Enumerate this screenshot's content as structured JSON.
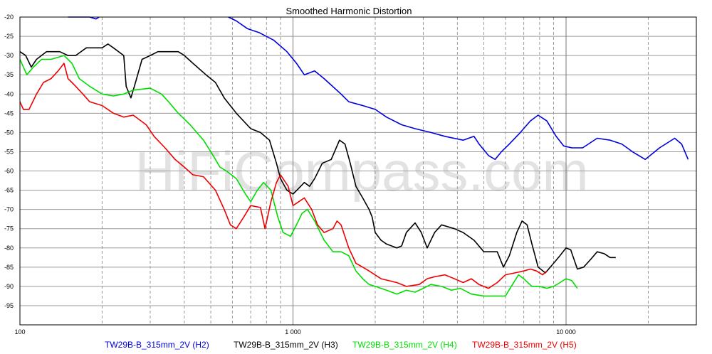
{
  "watermark": "HiFiCompass.com",
  "chart_data": {
    "type": "line",
    "title": "Smoothed Harmonic Distortion",
    "xlabel": "",
    "ylabel": "",
    "x_scale": "log",
    "xlim": [
      100,
      30000
    ],
    "ylim": [
      -100,
      -20
    ],
    "grid": true,
    "legend_position": "bottom",
    "y_ticks": [
      -20,
      -25,
      -30,
      -35,
      -40,
      -45,
      -50,
      -55,
      -60,
      -65,
      -70,
      -75,
      -80,
      -85,
      -90,
      -95
    ],
    "x_ticks": [
      {
        "value": 100,
        "label": "100"
      },
      {
        "value": 1000,
        "label": "1 000"
      },
      {
        "value": 10000,
        "label": "10 000"
      }
    ],
    "series": [
      {
        "name": "TW29B-B_315mm_2V (H2)",
        "color": "#0000dd",
        "segments": [
          [
            [
              150,
              -19
            ],
            [
              180,
              -19.5
            ],
            [
              190,
              -20.5
            ],
            [
              195,
              -19.5
            ]
          ],
          [
            [
              580,
              -19
            ],
            [
              620,
              -21
            ],
            [
              680,
              -23
            ],
            [
              750,
              -24
            ],
            [
              850,
              -26
            ],
            [
              950,
              -29
            ],
            [
              1030,
              -32
            ],
            [
              1100,
              -35
            ],
            [
              1200,
              -34
            ],
            [
              1300,
              -36
            ],
            [
              1500,
              -40
            ],
            [
              1600,
              -42
            ],
            [
              1800,
              -43
            ],
            [
              2000,
              -44
            ],
            [
              2200,
              -46
            ],
            [
              2500,
              -48
            ],
            [
              2800,
              -49
            ],
            [
              3200,
              -50
            ],
            [
              3600,
              -51
            ],
            [
              4200,
              -52
            ],
            [
              4600,
              -51
            ],
            [
              4800,
              -53
            ],
            [
              5200,
              -56
            ],
            [
              5500,
              -57
            ],
            [
              5800,
              -55
            ],
            [
              6200,
              -53
            ],
            [
              6800,
              -50
            ],
            [
              7400,
              -47
            ],
            [
              7900,
              -45.5
            ],
            [
              8500,
              -47
            ],
            [
              9200,
              -51
            ],
            [
              9800,
              -53.5
            ],
            [
              10500,
              -54
            ],
            [
              11500,
              -54
            ],
            [
              13000,
              -51.5
            ],
            [
              14500,
              -52
            ],
            [
              16000,
              -53
            ],
            [
              17500,
              -55
            ],
            [
              19500,
              -57
            ],
            [
              22000,
              -54
            ],
            [
              25000,
              -51.5
            ],
            [
              26500,
              -53
            ],
            [
              28000,
              -57
            ]
          ]
        ]
      },
      {
        "name": "TW29B-B_315mm_2V (H3)",
        "color": "#000000",
        "segments": [
          [
            [
              100,
              -29
            ],
            [
              105,
              -30
            ],
            [
              110,
              -33
            ],
            [
              115,
              -31
            ],
            [
              125,
              -29
            ],
            [
              140,
              -29
            ],
            [
              150,
              -30
            ],
            [
              160,
              -30
            ],
            [
              175,
              -28
            ],
            [
              185,
              -28
            ],
            [
              200,
              -28
            ],
            [
              210,
              -27
            ],
            [
              220,
              -28
            ],
            [
              240,
              -30
            ],
            [
              245,
              -38
            ],
            [
              255,
              -41
            ],
            [
              265,
              -37
            ],
            [
              280,
              -31
            ],
            [
              300,
              -30
            ],
            [
              320,
              -29
            ],
            [
              350,
              -29
            ],
            [
              380,
              -29
            ],
            [
              400,
              -30
            ],
            [
              430,
              -32
            ],
            [
              480,
              -35
            ],
            [
              520,
              -37
            ],
            [
              560,
              -41
            ],
            [
              620,
              -45
            ],
            [
              700,
              -49
            ],
            [
              760,
              -50
            ],
            [
              820,
              -52
            ],
            [
              870,
              -58
            ],
            [
              900,
              -62
            ],
            [
              950,
              -65
            ],
            [
              1000,
              -66
            ],
            [
              1050,
              -64.5
            ],
            [
              1100,
              -63
            ],
            [
              1150,
              -64
            ],
            [
              1200,
              -62
            ],
            [
              1280,
              -58
            ],
            [
              1380,
              -57
            ],
            [
              1480,
              -52
            ],
            [
              1550,
              -53
            ],
            [
              1620,
              -58
            ],
            [
              1700,
              -64
            ],
            [
              1800,
              -67
            ],
            [
              1900,
              -70
            ],
            [
              1950,
              -72
            ],
            [
              2000,
              -76
            ],
            [
              2100,
              -78
            ],
            [
              2200,
              -79
            ],
            [
              2400,
              -80
            ],
            [
              2500,
              -79.5
            ],
            [
              2600,
              -76
            ],
            [
              2800,
              -73.5
            ],
            [
              2950,
              -76
            ],
            [
              3100,
              -80
            ],
            [
              3300,
              -76
            ],
            [
              3500,
              -74
            ],
            [
              3900,
              -75
            ],
            [
              4200,
              -76
            ],
            [
              4600,
              -78
            ],
            [
              5000,
              -81
            ],
            [
              5600,
              -81
            ],
            [
              5900,
              -85
            ],
            [
              6200,
              -82
            ],
            [
              6600,
              -76
            ],
            [
              6900,
              -73
            ],
            [
              7200,
              -74
            ],
            [
              7500,
              -79
            ],
            [
              7900,
              -85
            ],
            [
              8400,
              -86.5
            ],
            [
              9000,
              -84
            ],
            [
              9500,
              -82
            ],
            [
              10000,
              -80
            ],
            [
              10400,
              -80.5
            ],
            [
              11000,
              -85.5
            ],
            [
              11600,
              -85
            ],
            [
              12300,
              -83
            ],
            [
              13000,
              -81
            ],
            [
              13800,
              -81.5
            ],
            [
              14500,
              -82.5
            ],
            [
              15200,
              -82.5
            ]
          ]
        ]
      },
      {
        "name": "TW29B-B_315mm_2V (H4)",
        "color": "#00dd00",
        "segments": [
          [
            [
              100,
              -31
            ],
            [
              106,
              -35
            ],
            [
              112,
              -33
            ],
            [
              120,
              -31
            ],
            [
              130,
              -31
            ],
            [
              145,
              -30
            ],
            [
              155,
              -32
            ],
            [
              165,
              -36
            ],
            [
              180,
              -38
            ],
            [
              200,
              -40
            ],
            [
              220,
              -40.5
            ],
            [
              240,
              -40
            ],
            [
              260,
              -39
            ],
            [
              300,
              -38.5
            ],
            [
              330,
              -40
            ],
            [
              350,
              -42
            ],
            [
              380,
              -45
            ],
            [
              420,
              -48
            ],
            [
              470,
              -52
            ],
            [
              510,
              -56
            ],
            [
              540,
              -59
            ],
            [
              570,
              -60
            ],
            [
              620,
              -62
            ],
            [
              670,
              -66
            ],
            [
              700,
              -68
            ],
            [
              740,
              -65
            ],
            [
              780,
              -63
            ],
            [
              830,
              -65
            ],
            [
              880,
              -72
            ],
            [
              920,
              -76
            ],
            [
              980,
              -77
            ],
            [
              1030,
              -74
            ],
            [
              1080,
              -71
            ],
            [
              1130,
              -70
            ],
            [
              1200,
              -73
            ],
            [
              1300,
              -78
            ],
            [
              1400,
              -81
            ],
            [
              1500,
              -81
            ],
            [
              1600,
              -82
            ],
            [
              1700,
              -86
            ],
            [
              1800,
              -88
            ],
            [
              1900,
              -89.5
            ],
            [
              2000,
              -90
            ],
            [
              2200,
              -91
            ],
            [
              2400,
              -92
            ],
            [
              2600,
              -91
            ],
            [
              2800,
              -91.5
            ],
            [
              3000,
              -90.5
            ],
            [
              3200,
              -89.5
            ],
            [
              3500,
              -90
            ],
            [
              3800,
              -91
            ],
            [
              4100,
              -90.5
            ],
            [
              4500,
              -92
            ],
            [
              5000,
              -92.5
            ],
            [
              5500,
              -92.5
            ],
            [
              6000,
              -92.5
            ],
            [
              6300,
              -90
            ],
            [
              6700,
              -87
            ],
            [
              7000,
              -88
            ],
            [
              7500,
              -90
            ],
            [
              8000,
              -90
            ],
            [
              8500,
              -90.5
            ],
            [
              9000,
              -90
            ],
            [
              9500,
              -89
            ],
            [
              10000,
              -88
            ],
            [
              10500,
              -88.5
            ],
            [
              11000,
              -90.5
            ]
          ]
        ]
      },
      {
        "name": "TW29B-B_315mm_2V (H5)",
        "color": "#ee0000",
        "segments": [
          [
            [
              100,
              -42
            ],
            [
              103,
              -44
            ],
            [
              108,
              -44
            ],
            [
              115,
              -40
            ],
            [
              122,
              -37
            ],
            [
              130,
              -36
            ],
            [
              138,
              -34
            ],
            [
              145,
              -32
            ],
            [
              150,
              -36
            ],
            [
              155,
              -37
            ],
            [
              160,
              -38
            ],
            [
              170,
              -40
            ],
            [
              180,
              -42
            ],
            [
              200,
              -43
            ],
            [
              220,
              -45
            ],
            [
              240,
              -46
            ],
            [
              260,
              -45.5
            ],
            [
              290,
              -48
            ],
            [
              310,
              -51
            ],
            [
              340,
              -54
            ],
            [
              370,
              -57
            ],
            [
              400,
              -59
            ],
            [
              430,
              -61
            ],
            [
              470,
              -61.5
            ],
            [
              520,
              -65
            ],
            [
              560,
              -70
            ],
            [
              590,
              -74
            ],
            [
              620,
              -75
            ],
            [
              660,
              -72
            ],
            [
              700,
              -69
            ],
            [
              760,
              -69.5
            ],
            [
              790,
              -75
            ],
            [
              830,
              -68
            ],
            [
              870,
              -63
            ],
            [
              900,
              -61
            ],
            [
              960,
              -64
            ],
            [
              1000,
              -69
            ],
            [
              1050,
              -68
            ],
            [
              1100,
              -67
            ],
            [
              1170,
              -70
            ],
            [
              1230,
              -74
            ],
            [
              1300,
              -76
            ],
            [
              1400,
              -75
            ],
            [
              1450,
              -73
            ],
            [
              1500,
              -74
            ],
            [
              1600,
              -80
            ],
            [
              1700,
              -84
            ],
            [
              1800,
              -85
            ],
            [
              1900,
              -86
            ],
            [
              2100,
              -88
            ],
            [
              2400,
              -89
            ],
            [
              2600,
              -90
            ],
            [
              2900,
              -89.5
            ],
            [
              3100,
              -88
            ],
            [
              3300,
              -87.5
            ],
            [
              3600,
              -87
            ],
            [
              3900,
              -88
            ],
            [
              4200,
              -89
            ],
            [
              4500,
              -88
            ],
            [
              4800,
              -89.5
            ],
            [
              5200,
              -90.5
            ],
            [
              5600,
              -89
            ],
            [
              6000,
              -87
            ],
            [
              6500,
              -86.5
            ],
            [
              7000,
              -86
            ],
            [
              7400,
              -85.5
            ],
            [
              7800,
              -86
            ],
            [
              8200,
              -87
            ],
            [
              8500,
              -86
            ]
          ]
        ]
      }
    ]
  }
}
